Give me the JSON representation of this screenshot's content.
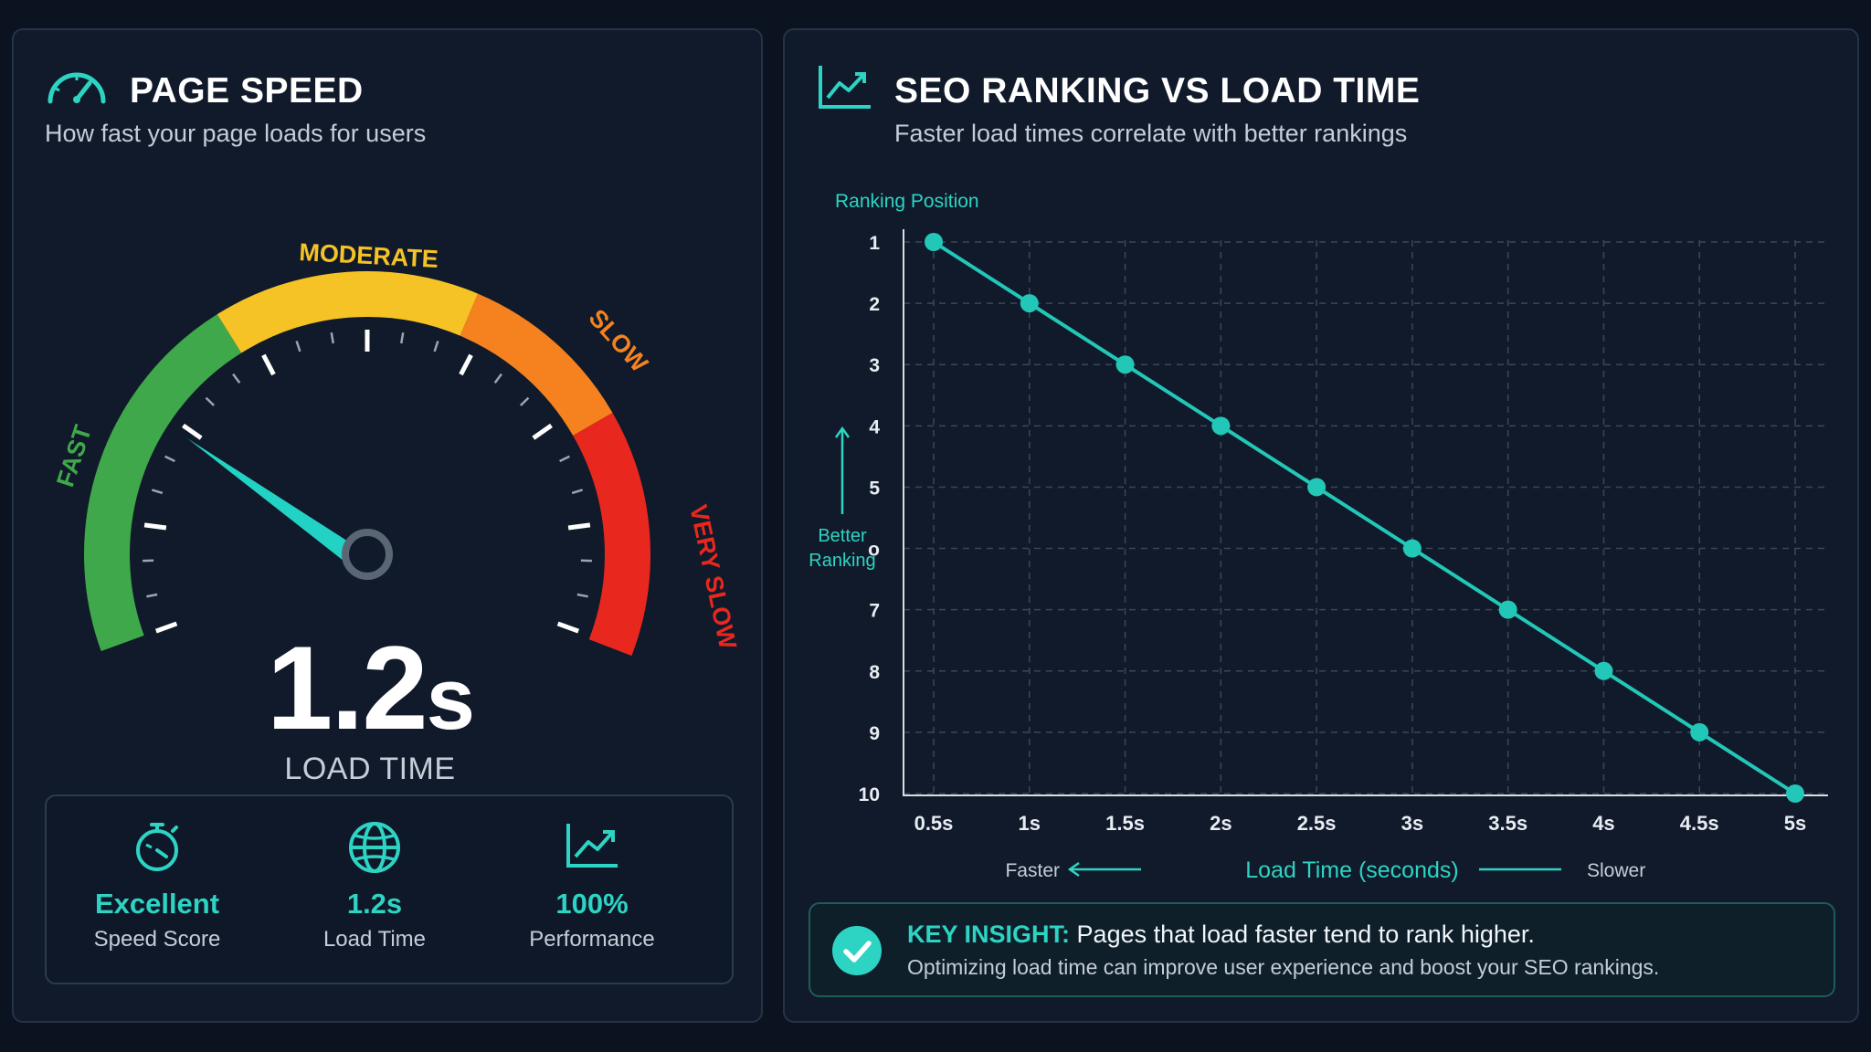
{
  "page_speed": {
    "title": "PAGE SPEED",
    "subtitle": "How fast your page loads for users",
    "icon": "speedometer-icon",
    "gauge": {
      "labels": {
        "fast": "FAST",
        "moderate": "MODERATE",
        "slow": "SLOW",
        "very_slow": "VERY SLOW"
      },
      "colors": {
        "fast": "#3fa84a",
        "moderate": "#f5c326",
        "slow": "#f5821f",
        "very_slow": "#e8281f",
        "needle": "#22d3c5"
      },
      "needle_zone": "fast"
    },
    "load_value": "1.2",
    "load_unit": "s",
    "load_label": "LOAD TIME",
    "stats": [
      {
        "icon": "stopwatch-icon",
        "value": "Excellent",
        "label": "Speed Score"
      },
      {
        "icon": "globe-icon",
        "value": "1.2s",
        "label": "Load Time"
      },
      {
        "icon": "trend-up-icon",
        "value": "100%",
        "label": "Performance"
      }
    ]
  },
  "seo": {
    "title": "SEO RANKING VS LOAD TIME",
    "subtitle": "Faster load times correlate with better rankings",
    "icon": "line-chart-icon",
    "insight": {
      "key": "KEY INSIGHT:",
      "headline": "Pages that load faster tend to rank higher.",
      "detail": "Optimizing load time can improve user experience and boost your SEO rankings.",
      "icon": "check-circle-icon"
    }
  },
  "chart_data": {
    "type": "line",
    "title": "",
    "ylabel": "Ranking Position",
    "xlabel": "Load Time (seconds)",
    "x_left_note": "Faster",
    "x_right_note": "Slower",
    "y_annotation": "Better\nRanking",
    "categories": [
      "0.5s",
      "1s",
      "1.5s",
      "2s",
      "2.5s",
      "3s",
      "3.5s",
      "4s",
      "4.5s",
      "5s"
    ],
    "x": [
      0.5,
      1,
      1.5,
      2,
      2.5,
      3,
      3.5,
      4,
      4.5,
      5
    ],
    "y_ticks": [
      "1",
      "2",
      "3",
      "4",
      "5",
      "o",
      "7",
      "8",
      "9",
      "10"
    ],
    "ylim": [
      1,
      10
    ],
    "y_inverted": true,
    "grid": true,
    "line_color": "#22c7b8",
    "series": [
      {
        "values": [
          1,
          2,
          3,
          4,
          5,
          6,
          7,
          8,
          9,
          10
        ]
      }
    ]
  }
}
